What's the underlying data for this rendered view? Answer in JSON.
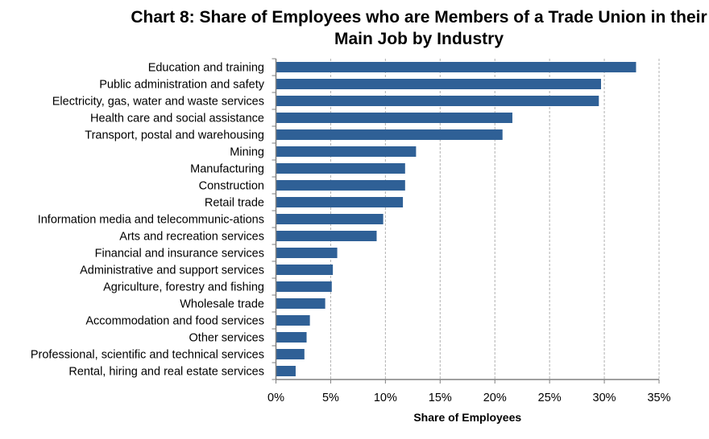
{
  "chart_data": {
    "type": "bar",
    "orientation": "horizontal",
    "title": "Chart 8: Share of Employees who are Members of a Trade Union in their Main Job by Industry",
    "xlabel": "Share of Employees",
    "ylabel": "",
    "xlim": [
      0,
      35
    ],
    "x_ticks": [
      "0%",
      "5%",
      "10%",
      "15%",
      "20%",
      "25%",
      "30%",
      "35%"
    ],
    "grid": "vertical dashed",
    "bar_color": "#2f6096",
    "categories": [
      "Education and training",
      "Public administration and safety",
      "Electricity, gas, water and waste services",
      "Health care and social assistance",
      "Transport, postal and warehousing",
      "Mining",
      "Manufacturing",
      "Construction",
      "Retail trade",
      "Information media and telecommunic-ations",
      "Arts and recreation services",
      "Financial and insurance services",
      "Administrative and support services",
      "Agriculture, forestry and fishing",
      "Wholesale trade",
      "Accommodation and food services",
      "Other services",
      "Professional, scientific and technical services",
      "Rental, hiring and real estate services"
    ],
    "values": [
      32.9,
      29.7,
      29.5,
      21.6,
      20.7,
      12.8,
      11.8,
      11.8,
      11.6,
      9.8,
      9.2,
      5.6,
      5.2,
      5.1,
      4.5,
      3.1,
      2.8,
      2.6,
      1.8
    ]
  }
}
